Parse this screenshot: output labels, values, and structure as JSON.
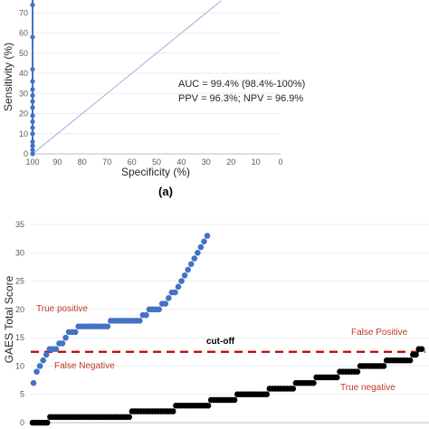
{
  "chart_data": [
    {
      "type": "line",
      "panel_label": "(a)",
      "xlabel": "Specificity (%)",
      "ylabel": "Sensitivity (%)",
      "xlim": [
        100,
        0
      ],
      "ylim": [
        0,
        80
      ],
      "x_ticks": [
        100,
        90,
        80,
        70,
        60,
        50,
        40,
        30,
        20,
        10,
        0
      ],
      "y_ticks": [
        0,
        10,
        20,
        30,
        40,
        50,
        60,
        70
      ],
      "annotations": [
        "AUC = 99.4% (98.4%-100%)",
        "PPV = 96.3%; NPV = 96.9%"
      ],
      "series": [
        {
          "color": "#4472c4",
          "marker": "circle",
          "x": [
            100,
            100,
            100,
            100,
            100,
            100,
            100,
            100,
            100,
            100,
            100,
            100,
            100,
            100,
            100,
            100,
            100
          ],
          "y": [
            0,
            2,
            4,
            6,
            10,
            13,
            16,
            19,
            23,
            26,
            29,
            32,
            36,
            42,
            58,
            74,
            80
          ]
        },
        {
          "color": "#8faadc",
          "marker": "none",
          "x": [
            100,
            24
          ],
          "y": [
            0,
            76
          ]
        }
      ]
    },
    {
      "type": "scatter",
      "ylabel": "GAES Total Score",
      "ylim": [
        0,
        35
      ],
      "y_ticks": [
        0,
        5,
        10,
        15,
        20,
        25,
        30,
        35
      ],
      "cutoff": {
        "value": 12.5,
        "label": "cut-off",
        "color": "#c00000"
      },
      "annotations": [
        {
          "text": "True positive",
          "color": "#c00000"
        },
        {
          "text": "False Negative",
          "color": "#c00000"
        },
        {
          "text": "False Positive",
          "color": "#c00000"
        },
        {
          "text": "True negative",
          "color": "#c00000"
        }
      ],
      "series": [
        {
          "color": "#4472c4",
          "x": [
            1,
            2,
            3,
            4,
            5,
            6,
            7,
            8,
            9,
            10,
            11,
            12,
            13,
            14,
            15,
            16,
            17,
            18,
            19,
            20,
            21,
            22,
            23,
            24,
            25,
            26,
            27,
            28,
            29,
            30,
            31,
            32,
            33,
            34,
            35,
            36,
            37,
            38,
            39,
            40,
            41,
            42,
            43,
            44,
            45,
            46,
            47,
            48,
            49,
            50,
            51,
            52,
            53,
            54,
            55
          ],
          "y": [
            7,
            9,
            10,
            11,
            12,
            13,
            13,
            13,
            14,
            14,
            15,
            16,
            16,
            16,
            17,
            17,
            17,
            17,
            17,
            17,
            17,
            17,
            17,
            17,
            18,
            18,
            18,
            18,
            18,
            18,
            18,
            18,
            18,
            18,
            19,
            19,
            20,
            20,
            20,
            20,
            21,
            21,
            22,
            23,
            23,
            24,
            25,
            26,
            27,
            28,
            29,
            30,
            31,
            32,
            33
          ]
        },
        {
          "color": "#000000",
          "x": [
            1,
            2,
            3,
            4,
            5,
            6,
            7,
            8,
            9,
            10,
            11,
            12,
            13,
            14,
            15,
            16,
            17,
            18,
            19,
            20,
            21,
            22,
            23,
            24,
            25,
            26,
            27,
            28,
            29,
            30,
            31,
            32,
            33,
            34,
            35,
            36,
            37,
            38,
            39,
            40,
            41,
            42,
            43,
            44,
            45,
            46,
            47,
            48,
            49,
            50,
            51,
            52,
            53,
            54,
            55,
            56,
            57,
            58,
            59,
            60,
            61,
            62,
            63,
            64,
            65,
            66,
            67,
            68,
            69,
            70,
            71,
            72,
            73,
            74,
            75,
            76,
            77,
            78,
            79,
            80,
            81,
            82,
            83,
            84,
            85,
            86,
            87,
            88,
            89,
            90,
            91,
            92,
            93,
            94,
            95,
            96,
            97,
            98,
            99,
            100,
            101,
            102,
            103,
            104,
            105,
            106,
            107,
            108,
            109,
            110,
            111,
            112,
            113,
            114,
            115,
            116,
            117,
            118,
            119,
            120,
            121,
            122,
            123,
            124,
            125,
            126,
            127,
            128,
            129,
            130,
            131,
            132,
            133,
            134
          ],
          "y": [
            0,
            0,
            0,
            0,
            0,
            0,
            1,
            1,
            1,
            1,
            1,
            1,
            1,
            1,
            1,
            1,
            1,
            1,
            1,
            1,
            1,
            1,
            1,
            1,
            1,
            1,
            1,
            1,
            1,
            1,
            1,
            1,
            1,
            1,
            2,
            2,
            2,
            2,
            2,
            2,
            2,
            2,
            2,
            2,
            2,
            2,
            2,
            2,
            2,
            3,
            3,
            3,
            3,
            3,
            3,
            3,
            3,
            3,
            3,
            3,
            3,
            4,
            4,
            4,
            4,
            4,
            4,
            4,
            4,
            4,
            5,
            5,
            5,
            5,
            5,
            5,
            5,
            5,
            5,
            5,
            5,
            6,
            6,
            6,
            6,
            6,
            6,
            6,
            6,
            6,
            7,
            7,
            7,
            7,
            7,
            7,
            7,
            8,
            8,
            8,
            8,
            8,
            8,
            8,
            8,
            9,
            9,
            9,
            9,
            9,
            9,
            9,
            10,
            10,
            10,
            10,
            10,
            10,
            10,
            10,
            10,
            11,
            11,
            11,
            11,
            11,
            11,
            11,
            11,
            11,
            12,
            12,
            13,
            13
          ]
        }
      ]
    }
  ]
}
